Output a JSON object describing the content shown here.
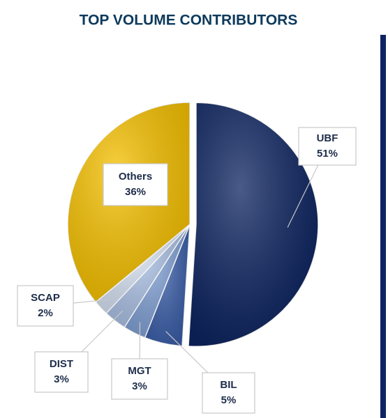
{
  "chart_data": {
    "type": "pie",
    "title": "TOP VOLUME CONTRIBUTORS",
    "categories": [
      "UBF",
      "BIL",
      "MGT",
      "DIST",
      "SCAP",
      "Others"
    ],
    "values": [
      51,
      5,
      3,
      3,
      2,
      36
    ],
    "value_labels": [
      "51%",
      "5%",
      "3%",
      "3%",
      "2%",
      "36%"
    ],
    "colors": [
      "#0d2460",
      "#3a5ea8",
      "#7f9fd3",
      "#a9bfe3",
      "#d5e0f1",
      "#f5c000"
    ]
  }
}
